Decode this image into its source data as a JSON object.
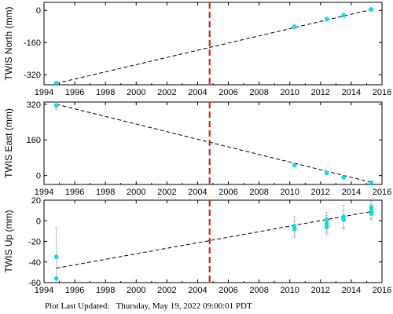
{
  "footer": {
    "label": "Plot Last Updated:",
    "timestamp": "Thursday, May 19, 2022 09:00:01 PDT"
  },
  "chart_data": [
    {
      "type": "scatter",
      "ylabel": "TWIS North (mm)",
      "xlim": [
        1994,
        2016
      ],
      "ylim": [
        -370,
        40
      ],
      "x_ticks": [
        1994,
        1996,
        1998,
        2000,
        2002,
        2004,
        2006,
        2008,
        2010,
        2012,
        2014,
        2016
      ],
      "y_ticks": [
        0,
        -160,
        -320
      ],
      "event_line_x": 2004.78,
      "trend": {
        "x": [
          1994.8,
          2015.3
        ],
        "y": [
          -363,
          4
        ]
      },
      "points": [
        {
          "x": 1994.8,
          "y": -362,
          "err": 0
        },
        {
          "x": 2010.3,
          "y": -81,
          "err": 0
        },
        {
          "x": 2012.4,
          "y": -43,
          "err": 0
        },
        {
          "x": 2013.5,
          "y": -24,
          "err": 0
        },
        {
          "x": 2015.3,
          "y": 5,
          "err": 0
        }
      ],
      "colors": {
        "points": "#00e5ee",
        "trend": "#000000",
        "event": "#e0201a"
      },
      "grid": false
    },
    {
      "type": "scatter",
      "ylabel": "TWIS East (mm)",
      "xlim": [
        1994,
        2016
      ],
      "ylim": [
        -40,
        330
      ],
      "x_ticks": [
        1994,
        1996,
        1998,
        2000,
        2002,
        2004,
        2006,
        2008,
        2010,
        2012,
        2014,
        2016
      ],
      "y_ticks": [
        320,
        160,
        0
      ],
      "event_line_x": 2004.78,
      "trend": {
        "x": [
          1994.8,
          2015.3
        ],
        "y": [
          320,
          -30
        ]
      },
      "points": [
        {
          "x": 1994.8,
          "y": 315,
          "err": 18
        },
        {
          "x": 2010.3,
          "y": 47,
          "err": 0
        },
        {
          "x": 2012.4,
          "y": 12,
          "err": 0
        },
        {
          "x": 2013.5,
          "y": -8,
          "err": 0
        },
        {
          "x": 2015.3,
          "y": -32,
          "err": 0
        }
      ],
      "colors": {
        "points": "#00e5ee",
        "trend": "#000000",
        "event": "#e0201a"
      },
      "grid": false
    },
    {
      "type": "scatter",
      "ylabel": "TWIS Up (mm)",
      "xlim": [
        1994,
        2016
      ],
      "ylim": [
        -60,
        20
      ],
      "x_ticks": [
        1994,
        1996,
        1998,
        2000,
        2002,
        2004,
        2006,
        2008,
        2010,
        2012,
        2014,
        2016
      ],
      "y_ticks": [
        20,
        0,
        -20,
        -40,
        -60
      ],
      "event_line_x": 2004.78,
      "trend": {
        "x": [
          1994.8,
          2015.3
        ],
        "y": [
          -46,
          9
        ]
      },
      "points": [
        {
          "x": 1994.8,
          "y": -35,
          "err": 28
        },
        {
          "x": 1994.8,
          "y": -56,
          "err": 0
        },
        {
          "x": 2010.3,
          "y": -5,
          "err": 9
        },
        {
          "x": 2010.3,
          "y": -8,
          "err": 8
        },
        {
          "x": 2012.4,
          "y": 1,
          "err": 7
        },
        {
          "x": 2012.4,
          "y": -3,
          "err": 8
        },
        {
          "x": 2012.4,
          "y": -6,
          "err": 7
        },
        {
          "x": 2013.5,
          "y": 4,
          "err": 11
        },
        {
          "x": 2013.5,
          "y": 1,
          "err": 9
        },
        {
          "x": 2015.3,
          "y": 13,
          "err": 6
        },
        {
          "x": 2015.3,
          "y": 9,
          "err": 7
        },
        {
          "x": 2015.3,
          "y": 7,
          "err": 6
        }
      ],
      "colors": {
        "points": "#00e5ee",
        "trend": "#000000",
        "event": "#e0201a"
      },
      "grid": false
    }
  ]
}
